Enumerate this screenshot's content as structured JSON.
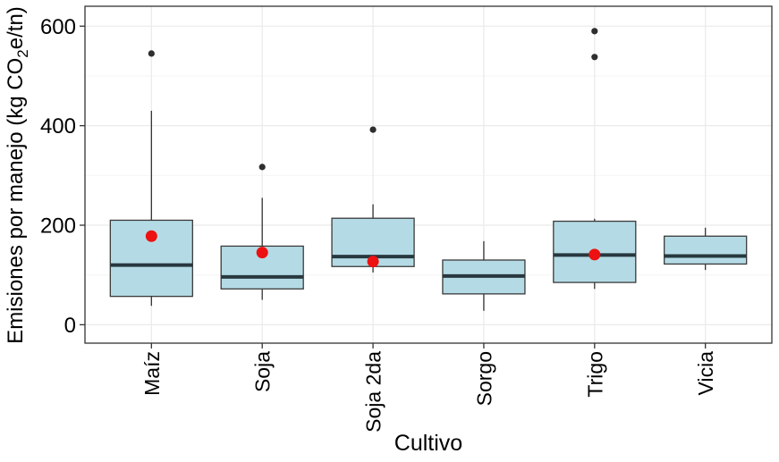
{
  "chart_data": {
    "type": "boxplot",
    "title": "",
    "xlabel": "Cultivo",
    "ylabel": "Emisiones por manejo (kg CO₂e/tn)",
    "ylabel_parts": {
      "pre": "Emisiones por manejo (kg CO",
      "sub": "2",
      "post": "e/tn)"
    },
    "categories": [
      "Maíz",
      "Soja",
      "Soja 2da",
      "Sorgo",
      "Trigo",
      "Vicia"
    ],
    "yticks": [
      0,
      200,
      400,
      600
    ],
    "yticks_minor": [
      100,
      300,
      500
    ],
    "ylim": [
      -37,
      640
    ],
    "grid": true,
    "legend": false,
    "series": [
      {
        "label": "Maíz",
        "whisker_low": 38,
        "q1": 57,
        "median": 120,
        "q3": 210,
        "whisker_high": 430,
        "mean": 178,
        "outliers": [
          545
        ]
      },
      {
        "label": "Soja",
        "whisker_low": 50,
        "q1": 72,
        "median": 96,
        "q3": 158,
        "whisker_high": 255,
        "mean": 145,
        "outliers": [
          317
        ]
      },
      {
        "label": "Soja 2da",
        "whisker_low": 105,
        "q1": 117,
        "median": 137,
        "q3": 214,
        "whisker_high": 242,
        "mean": 127,
        "outliers": [
          392
        ]
      },
      {
        "label": "Sorgo",
        "whisker_low": 28,
        "q1": 62,
        "median": 98,
        "q3": 130,
        "whisker_high": 168,
        "mean": null,
        "outliers": []
      },
      {
        "label": "Trigo",
        "whisker_low": 72,
        "q1": 85,
        "median": 140,
        "q3": 208,
        "whisker_high": 213,
        "mean": 141,
        "outliers": [
          590,
          538
        ]
      },
      {
        "label": "Vicia",
        "whisker_low": 110,
        "q1": 122,
        "median": 138,
        "q3": 178,
        "whisker_high": 195,
        "mean": null,
        "outliers": []
      }
    ],
    "style": {
      "box_fill": "#b4dbe5",
      "box_border": "#3a3a3a",
      "median_color": "#28383f",
      "mean_color": "#ee1111",
      "outlier_color": "#2e2e2e",
      "whisker_color": "#333333",
      "grid_major": "#ebebeb",
      "grid_minor": "#f4f4f4",
      "panel_border": "#333333",
      "tick_color": "#333333",
      "background": "#ffffff",
      "text_color": "#000000"
    }
  }
}
